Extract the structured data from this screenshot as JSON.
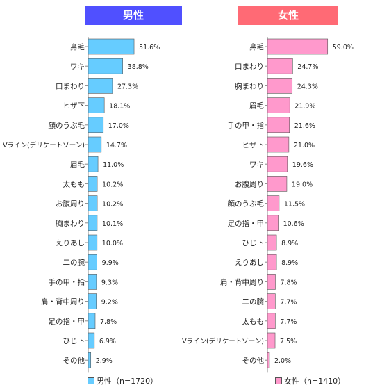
{
  "headers": {
    "male": "男性",
    "female": "女性"
  },
  "legend": {
    "male": "男性（n=1720）",
    "female": "女性（n=1410）"
  },
  "colors": {
    "male_bar": "#66ccff",
    "female_bar": "#ff99cc",
    "male_header": "#5050ff",
    "female_header": "#ff6a75"
  },
  "chart_data": [
    {
      "type": "bar",
      "orientation": "horizontal",
      "series": [
        {
          "name": "男性（n=1720）",
          "values": [
            51.6,
            38.8,
            27.3,
            18.1,
            17.0,
            14.7,
            11.0,
            10.2,
            10.2,
            10.1,
            10.0,
            9.9,
            9.3,
            9.2,
            7.8,
            6.9,
            2.9
          ]
        }
      ],
      "categories": [
        "鼻毛",
        "ワキ",
        "口まわり",
        "ヒザ下",
        "顔のうぶ毛",
        "Vライン(デリケートゾーン)",
        "眉毛",
        "太もも",
        "お腹周り",
        "胸まわり",
        "えりあし",
        "二の腕",
        "手の甲・指",
        "肩・背中周り",
        "足の指・甲",
        "ひじ下",
        "その他"
      ],
      "value_labels": [
        "51.6%",
        "38.8%",
        "27.3%",
        "18.1%",
        "17.0%",
        "14.7%",
        "11.0%",
        "10.2%",
        "10.2%",
        "10.1%",
        "10.0%",
        "9.9%",
        "9.3%",
        "9.2%",
        "7.8%",
        "6.9%",
        "2.9%"
      ],
      "title": "男性",
      "legend": "bottom",
      "grid": false
    },
    {
      "type": "bar",
      "orientation": "horizontal",
      "series": [
        {
          "name": "女性（n=1410）",
          "values": [
            59.0,
            24.7,
            24.3,
            21.9,
            21.6,
            21.0,
            19.6,
            19.0,
            11.5,
            10.6,
            8.9,
            8.9,
            7.8,
            7.7,
            7.7,
            7.5,
            2.0
          ]
        }
      ],
      "categories": [
        "鼻毛",
        "口まわり",
        "胸まわり",
        "眉毛",
        "手の甲・指",
        "ヒザ下",
        "ワキ",
        "お腹周り",
        "顔のうぶ毛",
        "足の指・甲",
        "ひじ下",
        "えりあし",
        "肩・背中周り",
        "二の腕",
        "太もも",
        "Vライン(デリケートゾーン)",
        "その他"
      ],
      "value_labels": [
        "59.0%",
        "24.7%",
        "24.3%",
        "21.9%",
        "21.6%",
        "21.0%",
        "19.6%",
        "19.0%",
        "11.5%",
        "10.6%",
        "8.9%",
        "8.9%",
        "7.8%",
        "7.7%",
        "7.7%",
        "7.5%",
        "2.0%"
      ],
      "title": "女性",
      "legend": "bottom",
      "grid": false
    }
  ]
}
